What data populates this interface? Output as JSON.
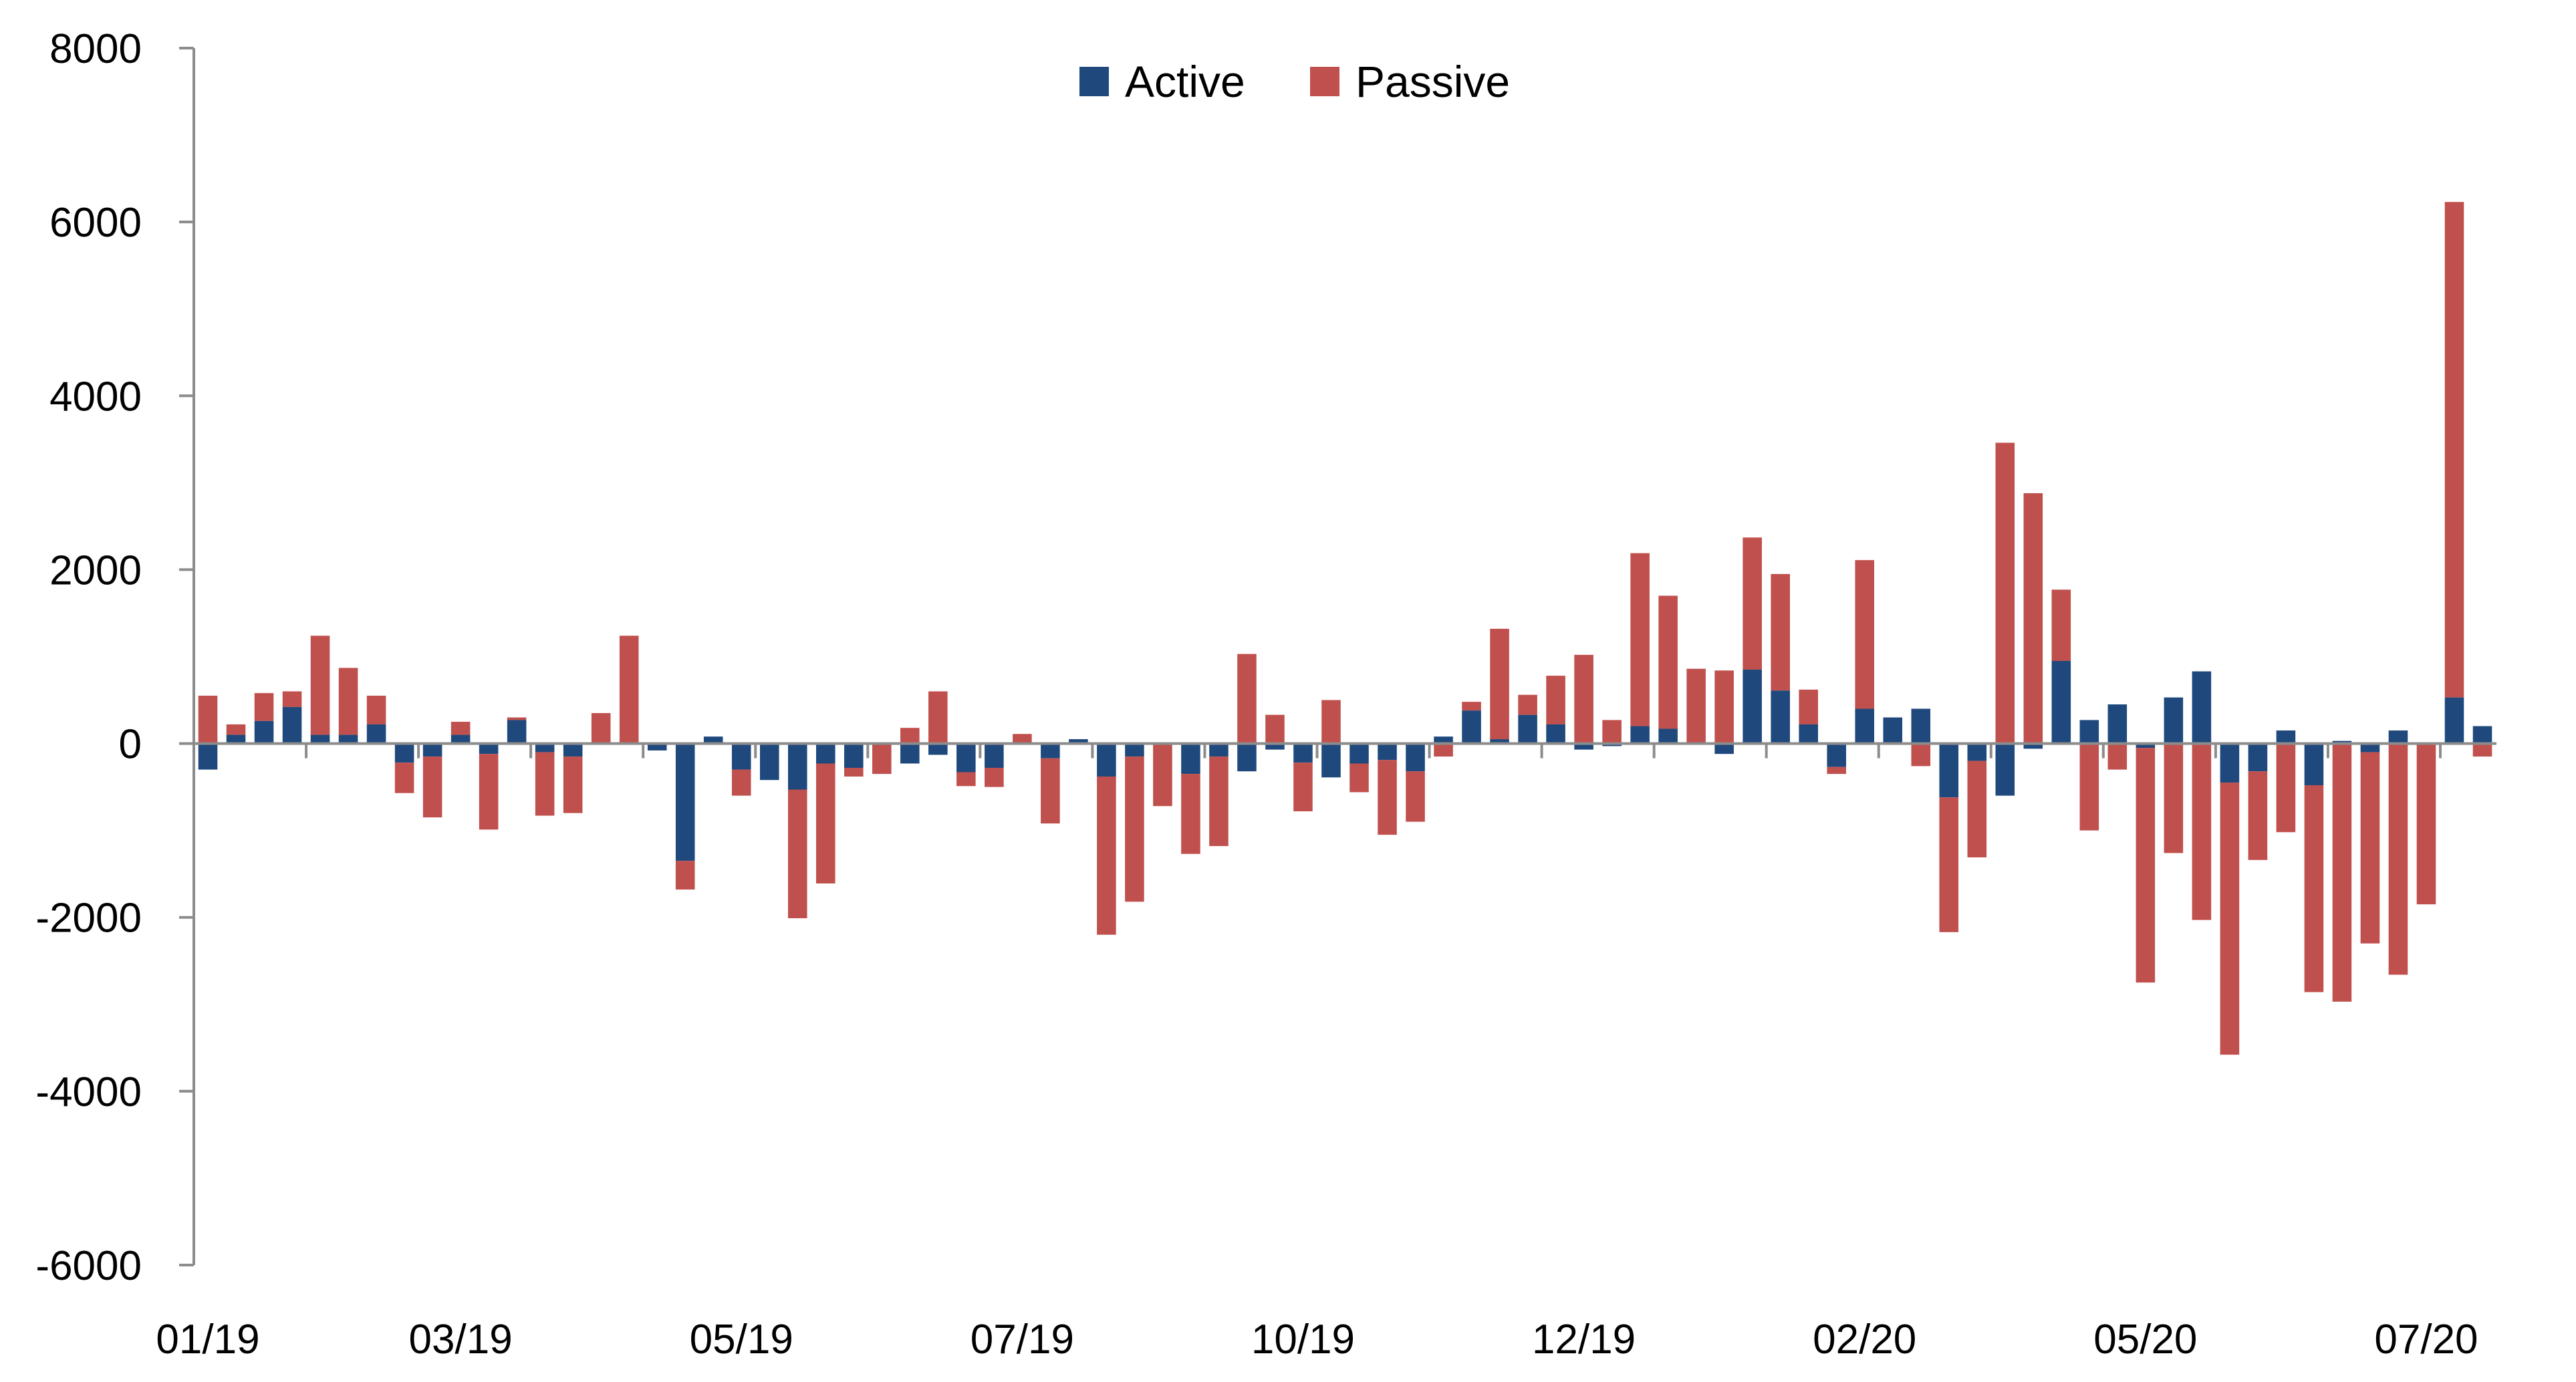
{
  "chart_data": {
    "type": "bar",
    "stacked": true,
    "title": "",
    "xlabel": "",
    "ylabel": "",
    "ylim": [
      -6000,
      8000
    ],
    "yticks": [
      -6000,
      -4000,
      -2000,
      0,
      2000,
      4000,
      6000,
      8000
    ],
    "x_tick_labels": [
      "01/19",
      "03/19",
      "05/19",
      "07/19",
      "10/19",
      "12/19",
      "02/20",
      "05/20",
      "07/20"
    ],
    "x_tick_label_positions": [
      0,
      9,
      19,
      29,
      39,
      49,
      59,
      69,
      79
    ],
    "grid": false,
    "legend": {
      "placement": "top-center",
      "entries": [
        "Active",
        "Passive"
      ]
    },
    "colors": {
      "Active": "#1F497D",
      "Passive": "#C0504D"
    },
    "series": [
      {
        "name": "Active",
        "values": [
          -300,
          100,
          260,
          420,
          100,
          100,
          220,
          -220,
          -150,
          100,
          -120,
          270,
          -100,
          -150,
          0,
          0,
          -80,
          -1350,
          80,
          -300,
          -420,
          -530,
          -230,
          -280,
          0,
          -230,
          -130,
          -330,
          -280,
          0,
          -170,
          50,
          -380,
          -150,
          0,
          -350,
          -150,
          -320,
          -70,
          -220,
          -390,
          -230,
          -190,
          -320,
          80,
          380,
          50,
          330,
          220,
          -70,
          -30,
          200,
          170,
          0,
          -120,
          850,
          610,
          220,
          -270,
          400,
          300,
          400,
          -620,
          -200,
          -600,
          -60,
          950,
          270,
          450,
          -50,
          530,
          830,
          -450,
          -320,
          150,
          -480,
          30,
          -100,
          150,
          0,
          530,
          200
        ]
      },
      {
        "name": "Passive",
        "values": [
          550,
          120,
          320,
          180,
          1140,
          770,
          330,
          -350,
          -700,
          150,
          -870,
          30,
          -730,
          -650,
          350,
          1240,
          0,
          -330,
          0,
          -300,
          0,
          -1480,
          -1380,
          -100,
          -350,
          180,
          600,
          -160,
          -220,
          110,
          -750,
          0,
          -1820,
          -1670,
          -720,
          -920,
          -1030,
          1030,
          330,
          -560,
          500,
          -330,
          -860,
          -580,
          -150,
          100,
          1270,
          230,
          560,
          1020,
          270,
          1990,
          1530,
          860,
          840,
          1520,
          1340,
          400,
          -80,
          1710,
          0,
          -260,
          -1550,
          -1110,
          3460,
          2880,
          820,
          -1000,
          -300,
          -2700,
          -1260,
          -2030,
          -3130,
          -1020,
          -1020,
          -2380,
          -2970,
          -2200,
          -2660,
          -1850,
          5700,
          -150
        ]
      }
    ]
  }
}
